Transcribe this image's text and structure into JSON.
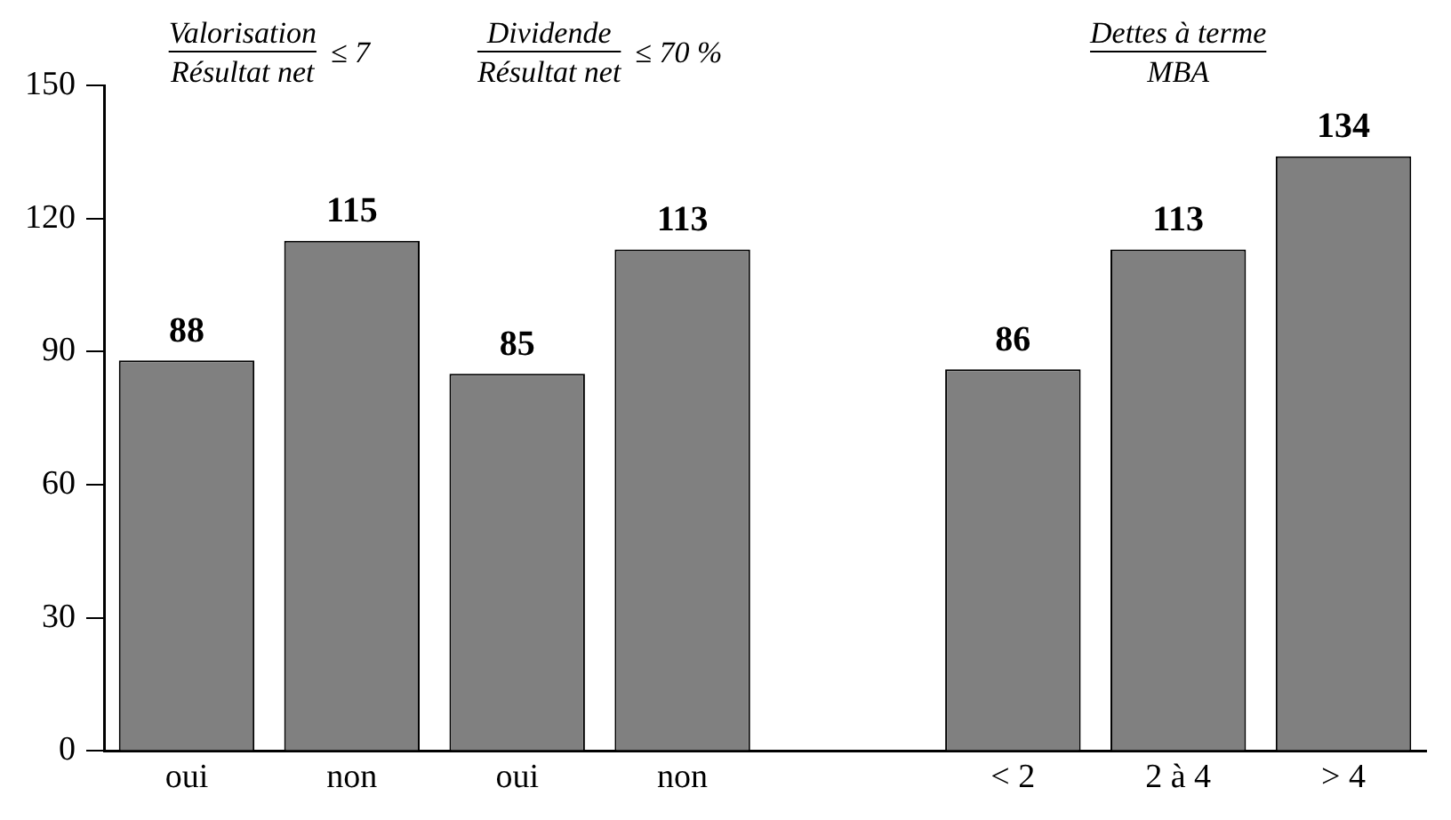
{
  "chart_data": {
    "type": "bar",
    "categories": [
      "oui",
      "non",
      "oui",
      "non",
      null,
      "< 2",
      "2 à 4",
      "> 4"
    ],
    "values": [
      88,
      115,
      85,
      113,
      null,
      86,
      113,
      134
    ],
    "color": "#808080",
    "ylim": [
      0,
      150
    ],
    "yticks": [
      0,
      30,
      60,
      90,
      120,
      150
    ],
    "grid": false,
    "legend": false,
    "data_labels": true,
    "annotations": [
      "Valorisation",
      "Résultat net",
      "≤ 7",
      "Dividende",
      "Résultat net",
      "≤ 70 %",
      "Dettes à terme",
      "MBA"
    ]
  }
}
